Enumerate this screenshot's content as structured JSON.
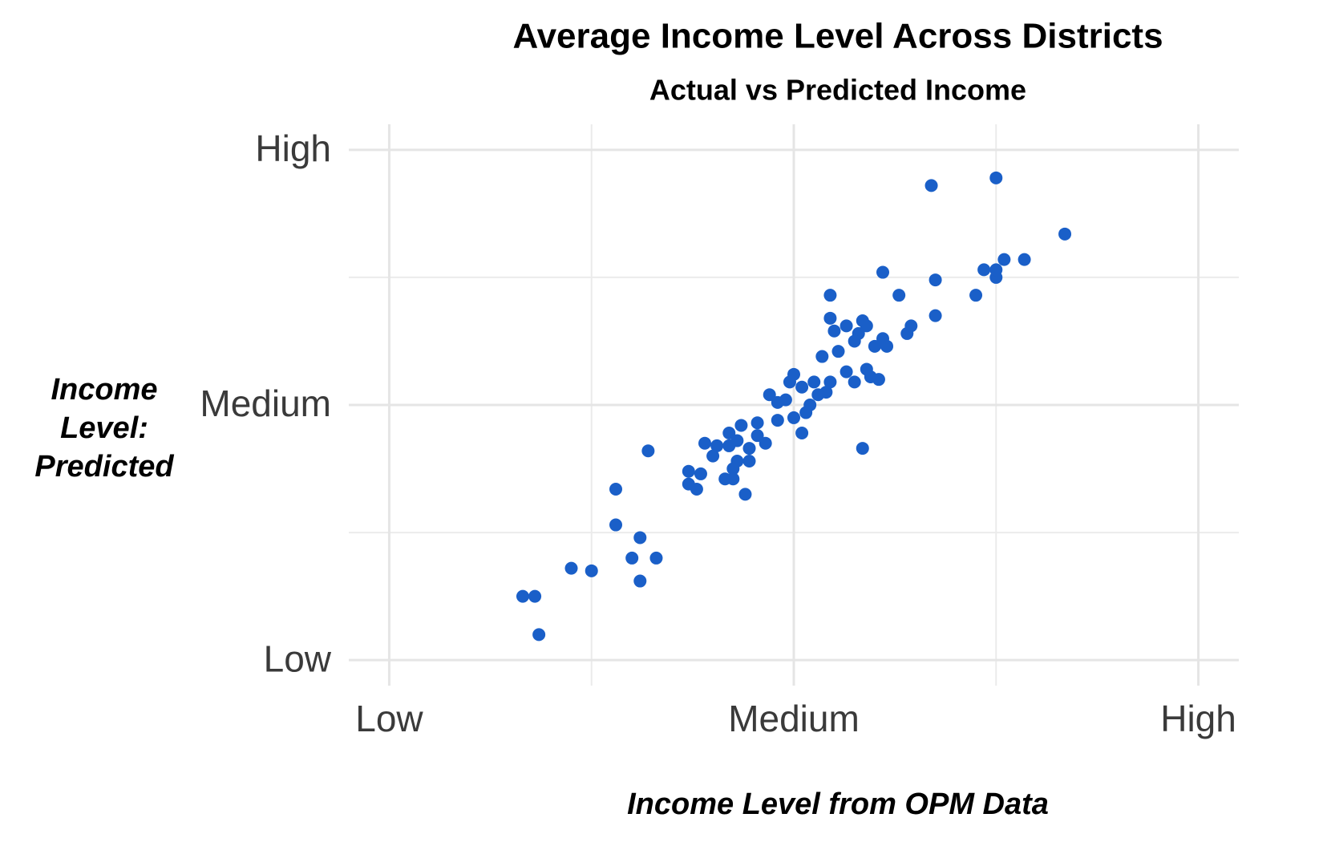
{
  "chart_data": {
    "type": "scatter",
    "title": "Average Income Level Across Districts",
    "subtitle": "Actual vs Predicted Income",
    "x_label": "Income Level from OPM Data",
    "y_label": "Income Level: Predicted",
    "color": "#1a5fc8",
    "grid": true,
    "xlim": [
      -0.1,
      2.1
    ],
    "ylim": [
      -0.1,
      2.1
    ],
    "xticks": [
      {
        "value": 0,
        "label": "Low"
      },
      {
        "value": 1,
        "label": "Medium"
      },
      {
        "value": 2,
        "label": "High"
      }
    ],
    "yticks": [
      {
        "value": 0,
        "label": "Low"
      },
      {
        "value": 1,
        "label": "Medium"
      },
      {
        "value": 2,
        "label": "High"
      }
    ],
    "minor_xticks": [
      0.5,
      1.5
    ],
    "minor_yticks": [
      0.5,
      1.5
    ],
    "x": [
      1.34,
      1.5,
      1.67,
      1.22,
      1.35,
      1.47,
      1.5,
      1.5,
      1.52,
      1.57,
      1.45,
      1.35,
      1.26,
      1.09,
      1.09,
      1.1,
      1.13,
      1.17,
      1.18,
      1.16,
      1.15,
      1.2,
      1.22,
      1.23,
      1.28,
      1.29,
      1.07,
      1.11,
      1.13,
      1.18,
      1.15,
      1.19,
      1.21,
      1.09,
      1.08,
      1.06,
      1.05,
      1.02,
      1.0,
      0.99,
      0.98,
      0.96,
      0.94,
      1.04,
      1.03,
      1.0,
      0.96,
      1.02,
      1.17,
      0.91,
      0.87,
      0.91,
      0.93,
      0.89,
      0.86,
      0.84,
      0.84,
      0.81,
      0.78,
      0.8,
      0.89,
      0.86,
      0.85,
      0.74,
      0.77,
      0.83,
      0.85,
      0.74,
      0.76,
      0.88,
      0.64,
      0.56,
      0.56,
      0.62,
      0.6,
      0.66,
      0.62,
      0.45,
      0.5,
      0.33,
      0.36,
      0.37
    ],
    "y": [
      1.86,
      1.89,
      1.67,
      1.52,
      1.49,
      1.53,
      1.5,
      1.53,
      1.57,
      1.57,
      1.43,
      1.35,
      1.43,
      1.43,
      1.34,
      1.29,
      1.31,
      1.33,
      1.31,
      1.28,
      1.25,
      1.23,
      1.26,
      1.23,
      1.28,
      1.31,
      1.19,
      1.21,
      1.13,
      1.14,
      1.09,
      1.11,
      1.1,
      1.09,
      1.05,
      1.04,
      1.09,
      1.07,
      1.12,
      1.09,
      1.02,
      1.01,
      1.04,
      1.0,
      0.97,
      0.95,
      0.94,
      0.89,
      0.83,
      0.93,
      0.92,
      0.88,
      0.85,
      0.83,
      0.86,
      0.89,
      0.84,
      0.84,
      0.85,
      0.8,
      0.78,
      0.78,
      0.75,
      0.74,
      0.73,
      0.71,
      0.71,
      0.69,
      0.67,
      0.65,
      0.82,
      0.67,
      0.53,
      0.48,
      0.4,
      0.4,
      0.31,
      0.36,
      0.35,
      0.25,
      0.25,
      0.1
    ]
  }
}
